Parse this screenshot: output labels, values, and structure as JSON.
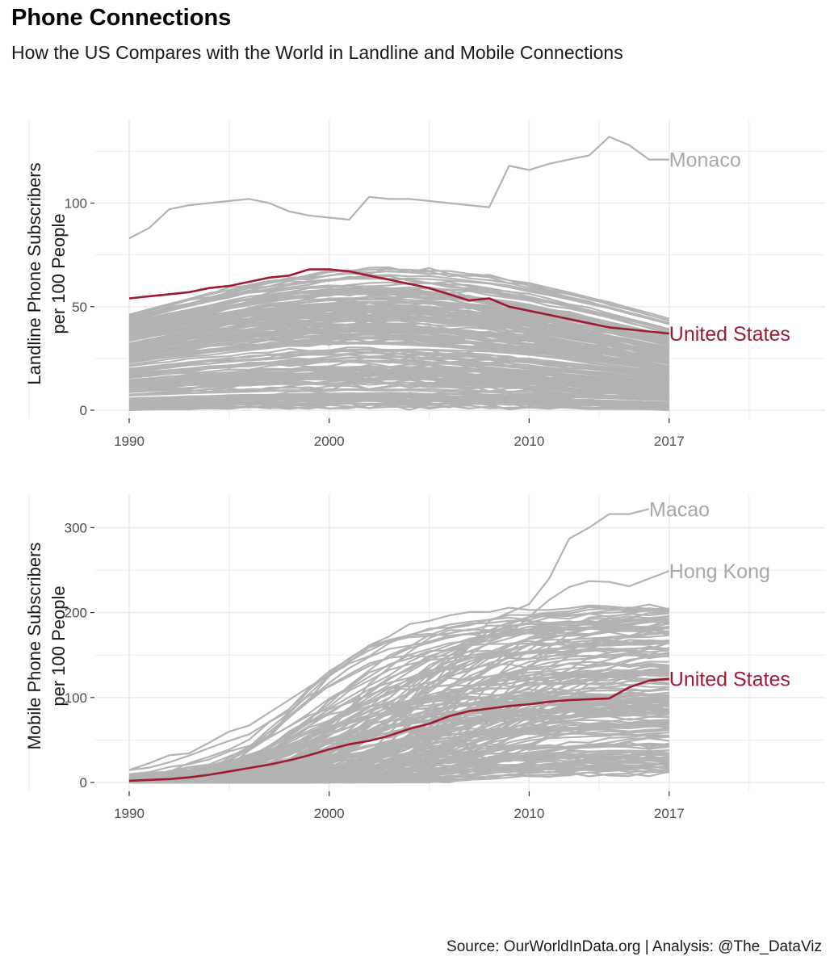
{
  "title": "Phone Connections",
  "subtitle": "How the US Compares with the World in Landline and Mobile Connections",
  "caption": "Source: OurWorldInData.org | Analysis: @The_DataViz",
  "colors": {
    "highlight": "#9e1b32",
    "background_series": "#b3b3b3",
    "grid": "#ebebeb"
  },
  "chart_data": [
    {
      "type": "line",
      "ylabel_lines": [
        "Landline Phone Subscribers",
        "per 100 People"
      ],
      "xlim": [
        1990,
        2017
      ],
      "ylim": [
        0,
        130
      ],
      "x_ticks": [
        "1990",
        "2000",
        "2010",
        "2017"
      ],
      "y_ticks": [
        "0",
        "50",
        "100"
      ],
      "grid": true,
      "series": [
        {
          "name": "Monaco",
          "x": [
            1990,
            1991,
            1992,
            1993,
            1994,
            1995,
            1996,
            1997,
            1998,
            1999,
            2000,
            2001,
            2002,
            2003,
            2004,
            2005,
            2006,
            2007,
            2008,
            2009,
            2010,
            2011,
            2012,
            2013,
            2014,
            2015,
            2016,
            2017
          ],
          "values": [
            83,
            88,
            97,
            99,
            100,
            101,
            102,
            100,
            96,
            94,
            93,
            92,
            103,
            102,
            102,
            101,
            100,
            99,
            98,
            118,
            116,
            119,
            121,
            123,
            132,
            128,
            121,
            121
          ]
        },
        {
          "name": "United States",
          "x": [
            1990,
            1991,
            1992,
            1993,
            1994,
            1995,
            1996,
            1997,
            1998,
            1999,
            2000,
            2001,
            2002,
            2003,
            2004,
            2005,
            2006,
            2007,
            2008,
            2009,
            2010,
            2011,
            2012,
            2013,
            2014,
            2015,
            2016,
            2017
          ],
          "values": [
            54,
            55,
            56,
            57,
            59,
            60,
            62,
            64,
            65,
            68,
            68,
            67,
            65,
            63,
            61,
            59,
            56,
            53,
            54,
            50,
            48,
            46,
            44,
            42,
            40,
            39,
            38,
            37
          ]
        }
      ]
    },
    {
      "type": "line",
      "ylabel_lines": [
        "Mobile Phone Subscribers",
        "per 100 People"
      ],
      "xlim": [
        1990,
        2017
      ],
      "ylim": [
        0,
        330
      ],
      "x_ticks": [
        "1990",
        "2000",
        "2010",
        "2017"
      ],
      "y_ticks": [
        "0",
        "100",
        "200",
        "300"
      ],
      "grid": true,
      "series": [
        {
          "name": "Macao",
          "x": [
            1990,
            1991,
            1992,
            1993,
            1994,
            1995,
            1996,
            1997,
            1998,
            1999,
            2000,
            2001,
            2002,
            2003,
            2004,
            2005,
            2006,
            2007,
            2008,
            2009,
            2010,
            2011,
            2012,
            2013,
            2014,
            2015,
            2016
          ],
          "values": [
            1,
            2,
            3,
            4,
            6,
            10,
            15,
            20,
            28,
            40,
            55,
            70,
            85,
            95,
            105,
            115,
            130,
            160,
            190,
            200,
            210,
            240,
            287,
            300,
            316,
            316,
            322
          ]
        },
        {
          "name": "Hong Kong",
          "x": [
            1990,
            1991,
            1992,
            1993,
            1994,
            1995,
            1996,
            1997,
            1998,
            1999,
            2000,
            2001,
            2002,
            2003,
            2004,
            2005,
            2006,
            2007,
            2008,
            2009,
            2010,
            2011,
            2012,
            2013,
            2014,
            2015,
            2016,
            2017
          ],
          "values": [
            3,
            4,
            6,
            8,
            14,
            20,
            30,
            40,
            55,
            70,
            80,
            85,
            93,
            105,
            118,
            125,
            135,
            150,
            165,
            175,
            195,
            215,
            230,
            237,
            236,
            231,
            240,
            249
          ]
        },
        {
          "name": "United States",
          "x": [
            1990,
            1991,
            1992,
            1993,
            1994,
            1995,
            1996,
            1997,
            1998,
            1999,
            2000,
            2001,
            2002,
            2003,
            2004,
            2005,
            2006,
            2007,
            2008,
            2009,
            2010,
            2011,
            2012,
            2013,
            2014,
            2015,
            2016,
            2017
          ],
          "values": [
            2,
            3,
            4,
            6,
            9,
            13,
            17,
            21,
            26,
            32,
            39,
            45,
            49,
            55,
            63,
            69,
            78,
            84,
            87,
            90,
            92,
            95,
            97,
            98,
            99,
            112,
            120,
            122
          ]
        }
      ]
    }
  ]
}
